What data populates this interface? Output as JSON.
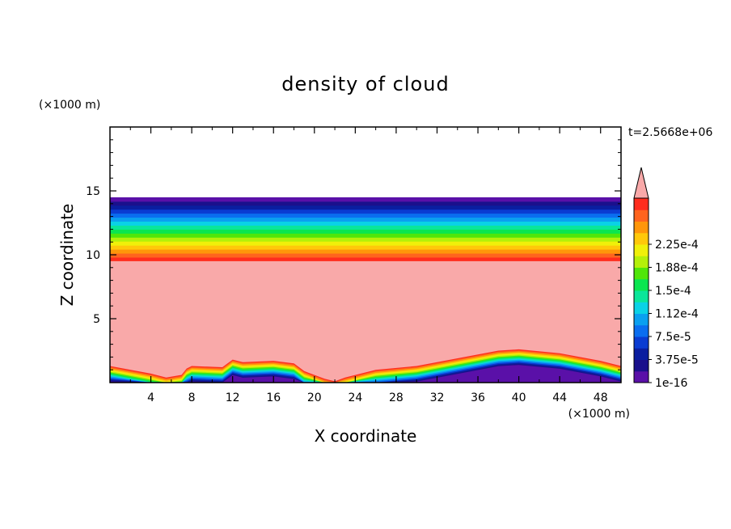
{
  "chart_data": {
    "type": "heatmap",
    "title": "density of cloud",
    "xlabel": "X coordinate",
    "ylabel": "Z coordinate",
    "x_unit": "(×1000 m)",
    "y_unit": "(×1000 m)",
    "time_label": "t=2.5668e+06",
    "xlim": [
      0,
      50
    ],
    "ylim": [
      0,
      20
    ],
    "x_ticks": [
      4,
      8,
      12,
      16,
      20,
      24,
      28,
      32,
      36,
      40,
      44,
      48
    ],
    "y_ticks": [
      5,
      10,
      15
    ],
    "layers": {
      "top_km": 14.5,
      "cloud_base_km": 9.5,
      "ground_profile": [
        {
          "x": 0,
          "z": 1.3
        },
        {
          "x": 4,
          "z": 0.7
        },
        {
          "x": 5.5,
          "z": 0.4
        },
        {
          "x": 7,
          "z": 0.6
        },
        {
          "x": 7.5,
          "z": 1.1
        },
        {
          "x": 8,
          "z": 1.3
        },
        {
          "x": 11,
          "z": 1.2
        },
        {
          "x": 12,
          "z": 1.8
        },
        {
          "x": 13,
          "z": 1.6
        },
        {
          "x": 16,
          "z": 1.7
        },
        {
          "x": 18,
          "z": 1.5
        },
        {
          "x": 19,
          "z": 0.9
        },
        {
          "x": 21,
          "z": 0.3
        },
        {
          "x": 22,
          "z": 0.1
        },
        {
          "x": 23,
          "z": 0.4
        },
        {
          "x": 26,
          "z": 1.0
        },
        {
          "x": 30,
          "z": 1.3
        },
        {
          "x": 34,
          "z": 1.9
        },
        {
          "x": 38,
          "z": 2.5
        },
        {
          "x": 40,
          "z": 2.6
        },
        {
          "x": 44,
          "z": 2.3
        },
        {
          "x": 48,
          "z": 1.7
        },
        {
          "x": 50,
          "z": 1.3
        }
      ]
    },
    "colorbar": {
      "labels": [
        "1e-16",
        "3.75e-5",
        "7.5e-5",
        "1.12e-4",
        "1.5e-4",
        "1.88e-4",
        "2.25e-4"
      ],
      "colors": [
        "#5a10a8",
        "#1a108c",
        "#0a1ea0",
        "#0a3cd2",
        "#0a6ef0",
        "#0aa0f0",
        "#0ad2e6",
        "#0ae69a",
        "#0ae650",
        "#50e60a",
        "#b4f00a",
        "#f0f00a",
        "#ffc80a",
        "#ff960a",
        "#ff641e",
        "#ff2d1e"
      ],
      "over_color": "#f9a9a9"
    }
  }
}
